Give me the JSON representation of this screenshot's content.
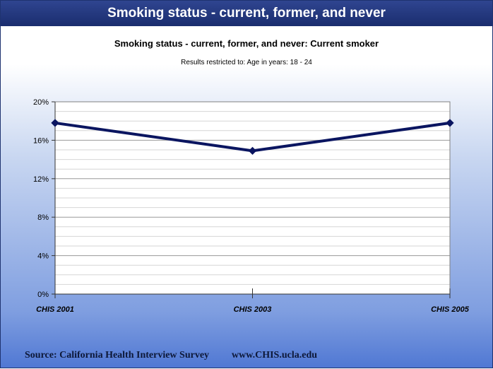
{
  "header": {
    "title": "Smoking status - current, former, and never"
  },
  "footer": {
    "source": "Source:  California Health Interview Survey",
    "url": "www.CHIS.ucla.edu"
  },
  "chart_data": {
    "type": "line",
    "title": "Smoking status - current, former, and never: Current smoker",
    "subtitle": "Results restricted to: Age in years: 18 - 24",
    "xlabel": "",
    "ylabel": "",
    "categories": [
      "CHIS 2001",
      "CHIS 2003",
      "CHIS 2005"
    ],
    "series": [
      {
        "values": [
          17.8,
          14.9,
          17.8
        ]
      }
    ],
    "ylim": [
      0,
      20
    ],
    "yticks": [
      "0%",
      "4%",
      "8%",
      "12%",
      "16%",
      "20%"
    ],
    "grid": true,
    "legend": "none",
    "colors": {
      "line": "#0a1560",
      "marker": "#0a1560",
      "grid": "#bdbdbd"
    }
  }
}
